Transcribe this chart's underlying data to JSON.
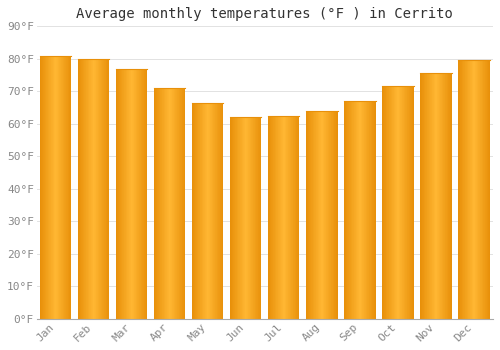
{
  "title": "Average monthly temperatures (°F ) in Cerrito",
  "months": [
    "Jan",
    "Feb",
    "Mar",
    "Apr",
    "May",
    "Jun",
    "Jul",
    "Aug",
    "Sep",
    "Oct",
    "Nov",
    "Dec"
  ],
  "values": [
    81,
    80,
    77,
    71,
    66.5,
    62,
    62.5,
    64,
    67,
    71.5,
    75.5,
    79.5
  ],
  "bar_color_light": "#FFB733",
  "bar_color_dark": "#E8900A",
  "ylim": [
    0,
    90
  ],
  "yticks": [
    0,
    10,
    20,
    30,
    40,
    50,
    60,
    70,
    80,
    90
  ],
  "ytick_labels": [
    "0°F",
    "10°F",
    "20°F",
    "30°F",
    "40°F",
    "50°F",
    "60°F",
    "70°F",
    "80°F",
    "90°F"
  ],
  "background_color": "#FFFFFF",
  "grid_color": "#DDDDDD",
  "title_fontsize": 10,
  "tick_fontsize": 8,
  "title_color": "#333333",
  "tick_color": "#888888"
}
